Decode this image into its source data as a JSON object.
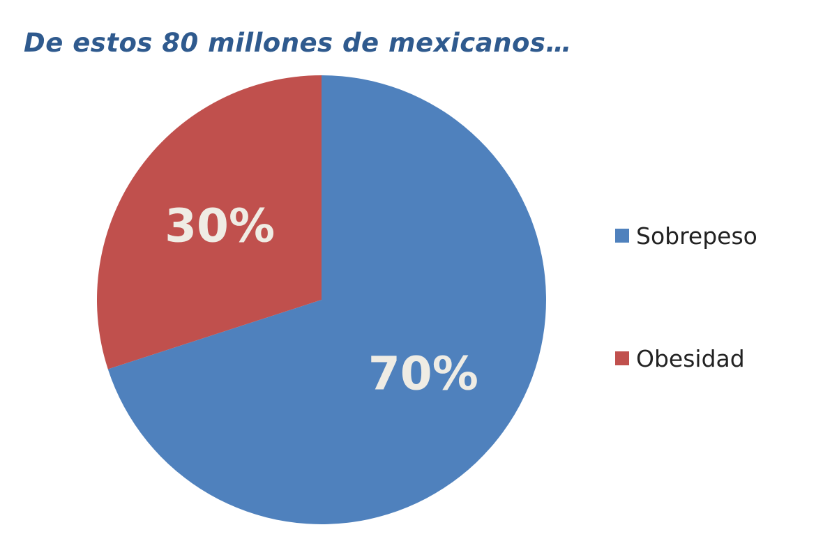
{
  "chart_data": {
    "type": "pie",
    "title": "De estos 80 millones de mexicanos…",
    "slices": [
      {
        "name": "Sobrepeso",
        "value": 70,
        "label": "70%",
        "color": "#4f81bd"
      },
      {
        "name": "Obesidad",
        "value": 30,
        "label": "30%",
        "color": "#c0504d"
      }
    ],
    "start_angle_deg": 0,
    "direction": "clockwise",
    "legend_position": "right",
    "label_color": "#efece4"
  }
}
